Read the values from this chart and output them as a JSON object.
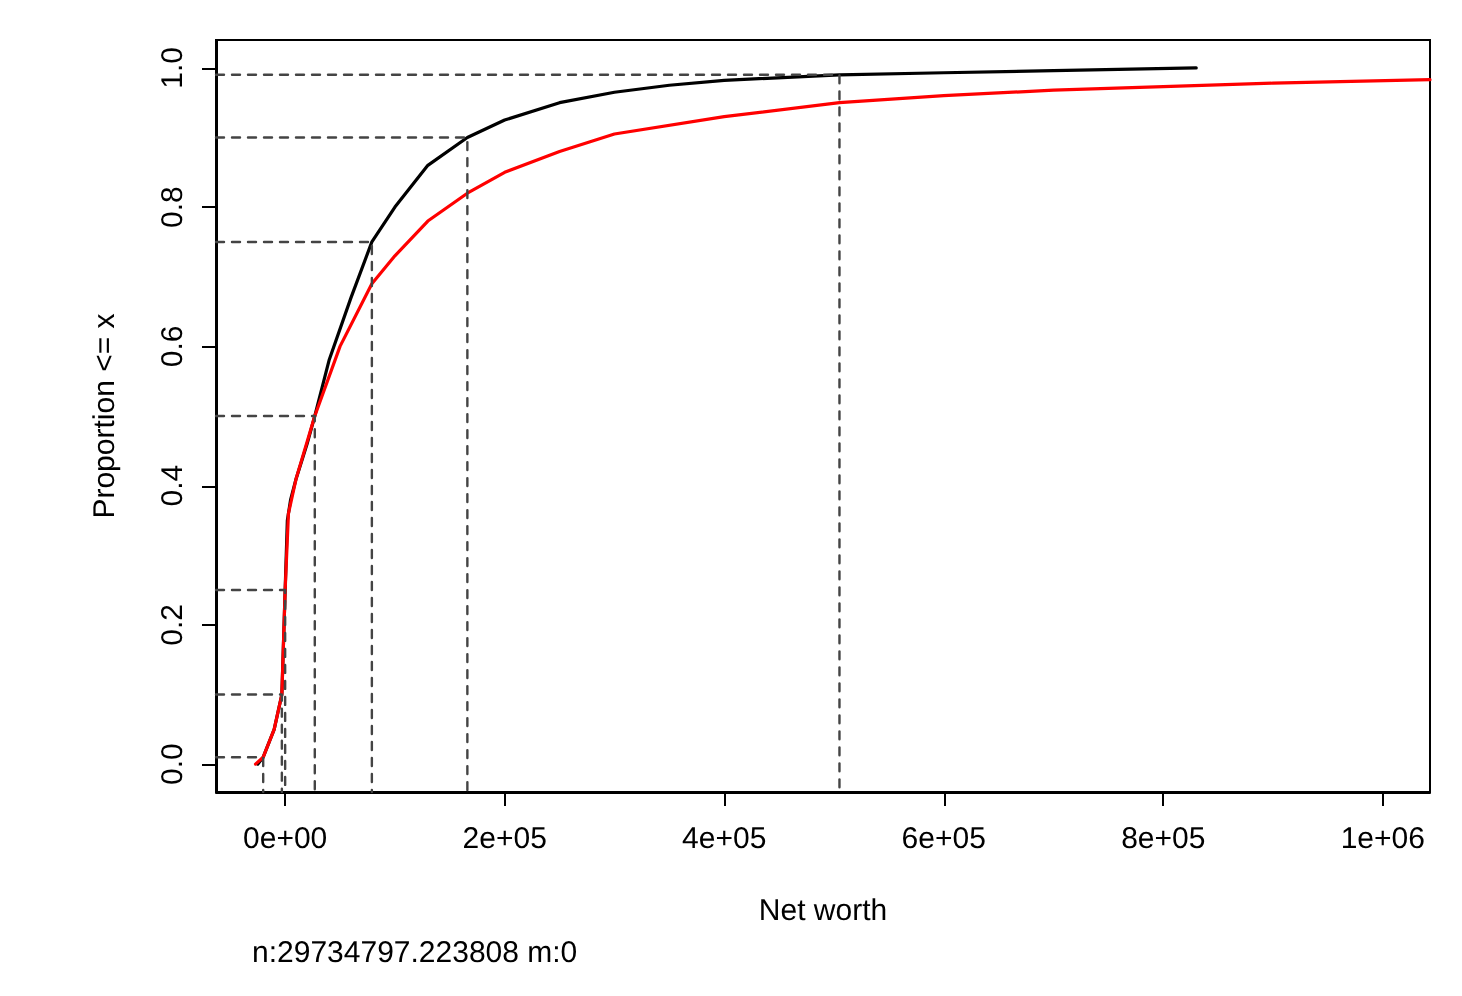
{
  "chart_data": {
    "type": "line",
    "xlabel": "Net worth",
    "ylabel": "Proportion <= x",
    "xlim": [
      -63000,
      1043000
    ],
    "ylim": [
      -0.04,
      1.04
    ],
    "xticks": [
      {
        "value": 0,
        "label": "0e+00"
      },
      {
        "value": 200000,
        "label": "2e+05"
      },
      {
        "value": 400000,
        "label": "4e+05"
      },
      {
        "value": 600000,
        "label": "6e+05"
      },
      {
        "value": 800000,
        "label": "8e+05"
      },
      {
        "value": 1000000,
        "label": "1e+06"
      }
    ],
    "yticks": [
      {
        "value": 0,
        "label": "0.0"
      },
      {
        "value": 0.2,
        "label": "0.2"
      },
      {
        "value": 0.4,
        "label": "0.4"
      },
      {
        "value": 0.6,
        "label": "0.6"
      },
      {
        "value": 0.8,
        "label": "0.8"
      },
      {
        "value": 1,
        "label": "1.0"
      }
    ],
    "grid": false,
    "marker": "none",
    "line_style": "solid",
    "annotations": [
      "n:29734797.223808 m:0"
    ],
    "series": [
      {
        "color": "#000000",
        "x": [
          -25000,
          -20000,
          -10000,
          -3000,
          0,
          2000,
          5000,
          10000,
          20000,
          27000,
          40000,
          60000,
          79000,
          100000,
          130000,
          166000,
          200000,
          250000,
          300000,
          350000,
          400000,
          505000,
          600000,
          700000,
          830000
        ],
        "values": [
          0,
          0.01,
          0.05,
          0.1,
          0.25,
          0.35,
          0.38,
          0.41,
          0.46,
          0.5,
          0.58,
          0.67,
          0.75,
          0.8,
          0.86,
          0.9,
          0.925,
          0.95,
          0.965,
          0.975,
          0.982,
          0.99,
          0.993,
          0.996,
          1.0
        ]
      },
      {
        "color": "#ff0000",
        "x": [
          -27000,
          -20000,
          -10000,
          -3000,
          0,
          3000,
          10000,
          27000,
          50000,
          79000,
          100000,
          130000,
          166000,
          200000,
          250000,
          300000,
          400000,
          505000,
          600000,
          700000,
          800000,
          900000,
          1043000
        ],
        "values": [
          0,
          0.01,
          0.05,
          0.1,
          0.25,
          0.36,
          0.41,
          0.5,
          0.6,
          0.69,
          0.73,
          0.78,
          0.82,
          0.85,
          0.88,
          0.905,
          0.93,
          0.95,
          0.96,
          0.968,
          0.973,
          0.978,
          0.983
        ]
      },
      {
        "color": "#444444",
        "line_style": "dashed",
        "x": [
          -63000,
          -20000,
          -20000
        ],
        "values": [
          0.01,
          0.01,
          -0.04
        ]
      },
      {
        "color": "#444444",
        "line_style": "dashed",
        "x": [
          -63000,
          -3000,
          -3000
        ],
        "values": [
          0.1,
          0.1,
          -0.04
        ]
      },
      {
        "color": "#444444",
        "line_style": "dashed",
        "x": [
          -63000,
          0,
          0
        ],
        "values": [
          0.25,
          0.25,
          -0.04
        ]
      },
      {
        "color": "#444444",
        "line_style": "dashed",
        "x": [
          -63000,
          27000,
          27000
        ],
        "values": [
          0.5,
          0.5,
          -0.04
        ]
      },
      {
        "color": "#444444",
        "line_style": "dashed",
        "x": [
          -63000,
          79000,
          79000
        ],
        "values": [
          0.75,
          0.75,
          -0.04
        ]
      },
      {
        "color": "#444444",
        "line_style": "dashed",
        "x": [
          -63000,
          166000,
          166000
        ],
        "values": [
          0.9,
          0.9,
          -0.04
        ]
      },
      {
        "color": "#444444",
        "line_style": "dashed",
        "x": [
          -63000,
          505000,
          505000
        ],
        "values": [
          0.99,
          0.99,
          -0.04
        ]
      }
    ]
  }
}
